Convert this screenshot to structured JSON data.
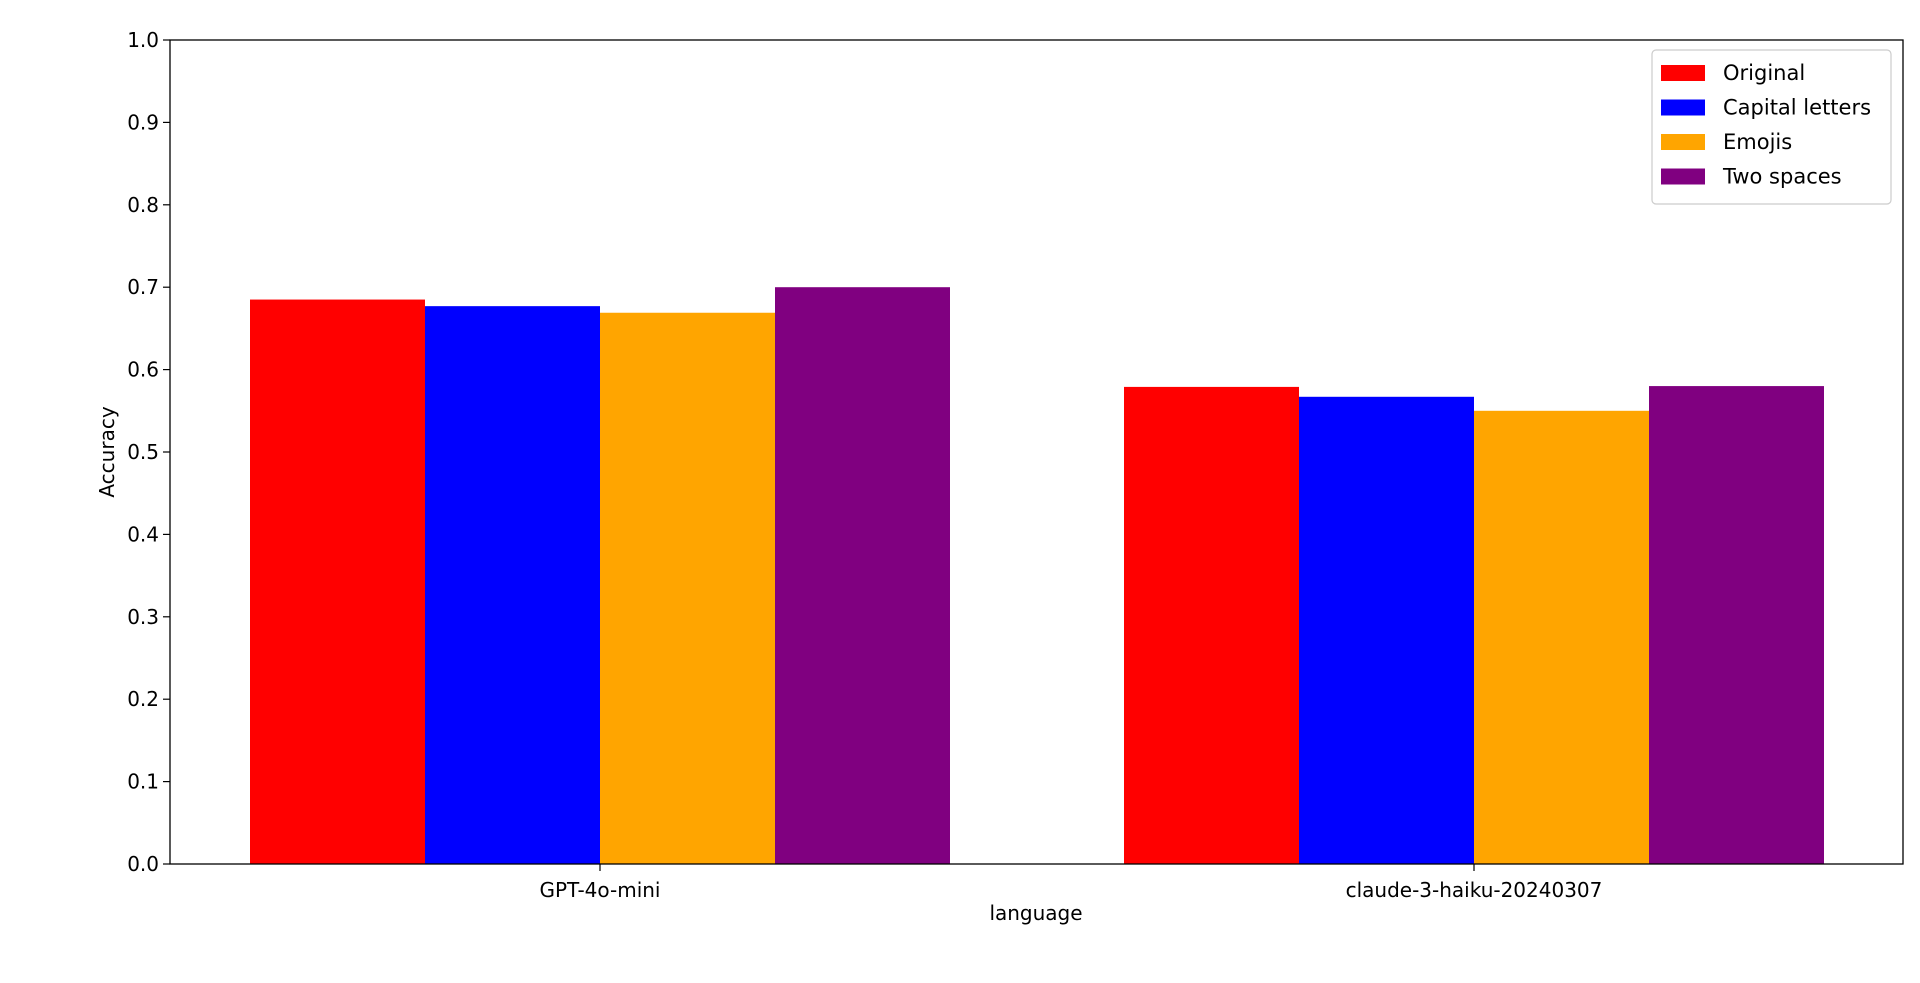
{
  "chart_data": {
    "type": "bar",
    "title": "",
    "xlabel": "language",
    "ylabel": "Accuracy",
    "ylim": [
      0,
      1.0
    ],
    "yticks": [
      "0.0",
      "0.1",
      "0.2",
      "0.3",
      "0.4",
      "0.5",
      "0.6",
      "0.7",
      "0.8",
      "0.9",
      "1.0"
    ],
    "categories": [
      "GPT-4o-mini",
      "claude-3-haiku-20240307"
    ],
    "series": [
      {
        "name": "Original",
        "color": "#ff0000",
        "values": [
          0.685,
          0.579
        ]
      },
      {
        "name": "Capital letters",
        "color": "#0000ff",
        "values": [
          0.677,
          0.567
        ]
      },
      {
        "name": "Emojis",
        "color": "#ffa500",
        "values": [
          0.669,
          0.55
        ]
      },
      {
        "name": "Two spaces",
        "color": "#800080",
        "values": [
          0.7,
          0.58
        ]
      }
    ],
    "grid": false,
    "legend_position": "top-right"
  }
}
